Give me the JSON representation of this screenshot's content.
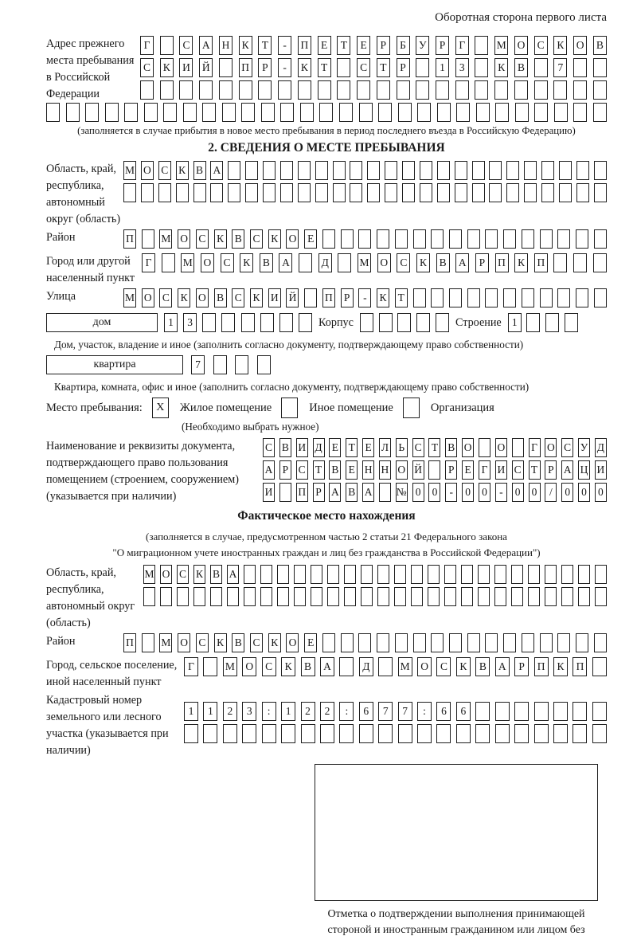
{
  "header": {
    "note": "Оборотная сторона первого листа"
  },
  "prev_address": {
    "label": "Адрес прежнего места пребывания в Российской Федерации",
    "rows": [
      {
        "len": 24,
        "text": "Г САНКТ-ПЕТЕРБУРГ МОСКОВ"
      },
      {
        "len": 24,
        "text": "СКИЙ ПР-КТ СТР 13 КВ 7"
      },
      {
        "len": 24,
        "text": ""
      }
    ],
    "extra_row": {
      "len": 29,
      "text": ""
    },
    "note": "(заполняется в случае прибытия в новое место пребывания в период последнего въезда в Российскую Федерацию)"
  },
  "section2": {
    "title": "2. СВЕДЕНИЯ О МЕСТЕ ПРЕБЫВАНИЯ",
    "oblast": {
      "label": "Область, край, республика, автономный округ (область)",
      "rows": [
        {
          "len": 28,
          "text": "МОСКВА"
        },
        {
          "len": 28,
          "text": ""
        }
      ]
    },
    "raion": {
      "label": "Район",
      "row": {
        "len": 27,
        "text": "П МОСКВСКОЕ"
      }
    },
    "gorod": {
      "label": "Город или другой населенный пункт",
      "row": {
        "len": 24,
        "text": "Г МОСКВА Д МОСКВАРПКП"
      }
    },
    "ulitsa": {
      "label": "Улица",
      "row": {
        "len": 27,
        "text": "МОСКОВСКИЙ ПР-КТ"
      }
    },
    "dom": {
      "field_label": "дом",
      "cells": {
        "len": 8,
        "text": "13"
      },
      "korpus_label": "Корпус",
      "korpus_cells": {
        "len": 5,
        "text": ""
      },
      "stroenie_label": "Строение",
      "stroenie_cells": {
        "len": 4,
        "text": "1"
      },
      "caption": "Дом, участок, владение и иное (заполнить согласно документу, подтверждающему право собственности)"
    },
    "kvartira": {
      "field_label": "квартира",
      "cells": {
        "len": 4,
        "text": "7"
      },
      "caption": "Квартира, комната, офис и иное (заполнить согласно документу, подтверждающему право собственности)"
    },
    "mesto": {
      "label": "Место пребывания:",
      "options": [
        {
          "label": "Жилое помещение",
          "checked": "X"
        },
        {
          "label": "Иное помещение",
          "checked": ""
        },
        {
          "label": "Организация",
          "checked": ""
        }
      ],
      "note": "(Необходимо выбрать нужное)"
    },
    "document": {
      "label": "Наименование и реквизиты документа, подтверждающего право пользования помещением (строением, сооружением) (указывается при наличии)",
      "rows": [
        {
          "len": 21,
          "text": "СВИДЕТЕЛЬСТВО О ГОСУД"
        },
        {
          "len": 21,
          "text": "АРСТВЕННОЙ РЕГИСТРАЦИ"
        },
        {
          "len": 21,
          "text": "И ПРАВА №00-00-00/000"
        }
      ]
    }
  },
  "section3": {
    "title": "Фактическое место нахождения",
    "note_line1": "(заполняется в случае, предусмотренном частью 2 статьи 21 Федерального закона",
    "note_line2": "\"О миграционном учете иностранных граждан и лиц без гражданства в Российской Федерации\")",
    "oblast": {
      "label": "Область, край, республика, автономный округ (область)",
      "rows": [
        {
          "len": 28,
          "text": "МОСКВА"
        },
        {
          "len": 28,
          "text": ""
        }
      ]
    },
    "raion": {
      "label": "Район",
      "row": {
        "len": 27,
        "text": "П МОСКВСКОЕ"
      }
    },
    "gorod": {
      "label": "Город, сельское поселение, иной населенный пункт",
      "row": {
        "len": 22,
        "text": "Г МОСКВА Д МОСКВАРПКП"
      }
    },
    "kadastr": {
      "label": "Кадастровый номер земельного или лесного участка (указывается при наличии)",
      "rows": [
        {
          "len": 22,
          "text": "1123:122:677:66"
        },
        {
          "len": 22,
          "text": ""
        }
      ]
    },
    "stamp_caption": "Отметка о подтверждении выполнения принимающей стороной и иностранным гражданином или лицом без гражданства действий, необходимых для его постановки на учет по месту пребывания"
  }
}
